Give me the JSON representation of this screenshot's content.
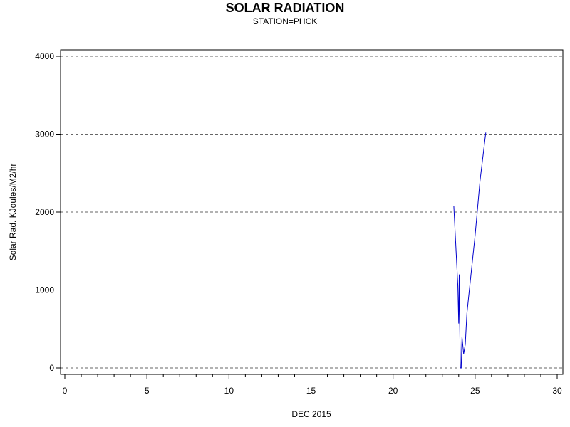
{
  "chart_data": {
    "type": "line",
    "title": "SOLAR RADIATION",
    "subtitle": "STATION=PHCK",
    "xlabel": "DEC 2015",
    "ylabel": "Solar Rad. KJoules/M2/hr",
    "xlim": [
      0,
      30
    ],
    "ylim": [
      0,
      4000
    ],
    "xticks": [
      0,
      5,
      10,
      15,
      20,
      25,
      30
    ],
    "yticks": [
      0,
      1000,
      2000,
      3000,
      4000
    ],
    "grid": "horizontal dashed",
    "series": [
      {
        "color": "#0000cc",
        "x": [
          23.7,
          23.95,
          24.0,
          24.03,
          24.06,
          24.1,
          24.15,
          24.2,
          24.3,
          24.4,
          24.5,
          24.7,
          25.0,
          25.3,
          25.65
        ],
        "y": [
          2080,
          1050,
          570,
          1200,
          550,
          0,
          0,
          400,
          180,
          300,
          700,
          1100,
          1700,
          2400,
          3020
        ]
      }
    ]
  }
}
